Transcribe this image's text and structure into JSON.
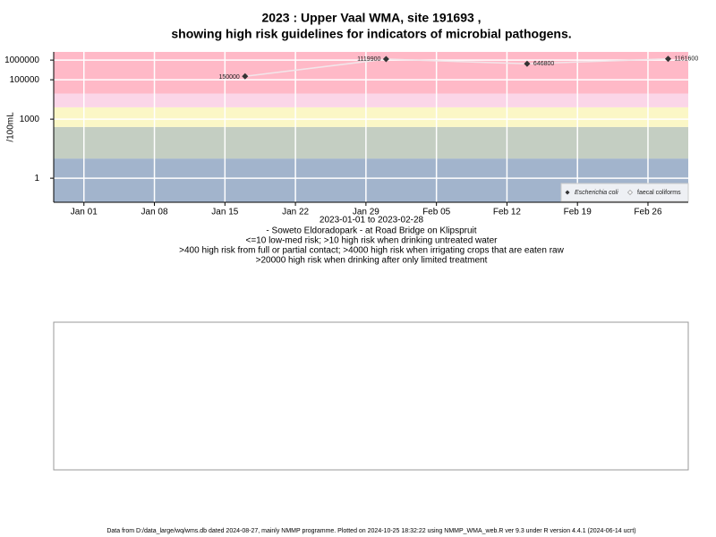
{
  "chart_data": {
    "type": "line",
    "title": "2023 : Upper Vaal WMA, site 191693 ,",
    "title2": "showing high risk guidelines for indicators of microbial pathogens.",
    "ylabel": "/100mL",
    "xlabel": "2023-01-01 to 2023-02-28",
    "subtitle": [
      "- Soweto Eldoradopark - at Road Bridge on Klipspruit",
      "<=10 low-med risk; >10 high risk when drinking untreated water",
      ">400 high risk from full or partial contact; >4000 high risk when irrigating crops that are eaten raw",
      ">20000 high risk when drinking after only limited treatment"
    ],
    "log_scale": true,
    "grid": true,
    "legend_position": "bottom-right",
    "ylim": [
      0.06,
      2600000
    ],
    "yticks": [
      1,
      1000,
      100000,
      1000000
    ],
    "xlim": [
      "2022-12-29",
      "2023-03-02"
    ],
    "xticks": [
      {
        "value": "2023-01-01",
        "label": "Jan 01"
      },
      {
        "value": "2023-01-08",
        "label": "Jan 08"
      },
      {
        "value": "2023-01-15",
        "label": "Jan 15"
      },
      {
        "value": "2023-01-22",
        "label": "Jan 22"
      },
      {
        "value": "2023-01-29",
        "label": "Jan 29"
      },
      {
        "value": "2023-02-05",
        "label": "Feb 05"
      },
      {
        "value": "2023-02-12",
        "label": "Feb 12"
      },
      {
        "value": "2023-02-19",
        "label": "Feb 19"
      },
      {
        "value": "2023-02-26",
        "label": "Feb 26"
      }
    ],
    "bands": [
      {
        "from": 0.06,
        "to": 10,
        "color": "#a2b4cc"
      },
      {
        "from": 10,
        "to": 400,
        "color": "#c4cec2"
      },
      {
        "from": 400,
        "to": 4000,
        "color": "#fbf7c6"
      },
      {
        "from": 4000,
        "to": 20000,
        "color": "#fbd6e8"
      },
      {
        "from": 20000,
        "to": 2600000,
        "color": "#ffb9c7"
      }
    ],
    "x": [
      "2023-01-17",
      "2023-01-31",
      "2023-02-14",
      "2023-02-28"
    ],
    "series": [
      {
        "name": "Escherichia coli",
        "color": "#333333",
        "line_color": "#f2e6ea",
        "values": [
          150000,
          1119900,
          646800,
          1161600
        ]
      },
      {
        "name": "faecal coliforms",
        "color": "#ffffff",
        "line_color": "#ffffff",
        "values": [
          null,
          null,
          null,
          null
        ]
      }
    ],
    "footer": "Data from D:/data_large/wq/wms.db dated 2024-08-27, mainly NMMP programme. Plotted on 2024-10-25 18:32:22 using NMMP_WMA_web.R ver 9.3 under R version 4.4.1 (2024-06-14 ucrt)"
  }
}
